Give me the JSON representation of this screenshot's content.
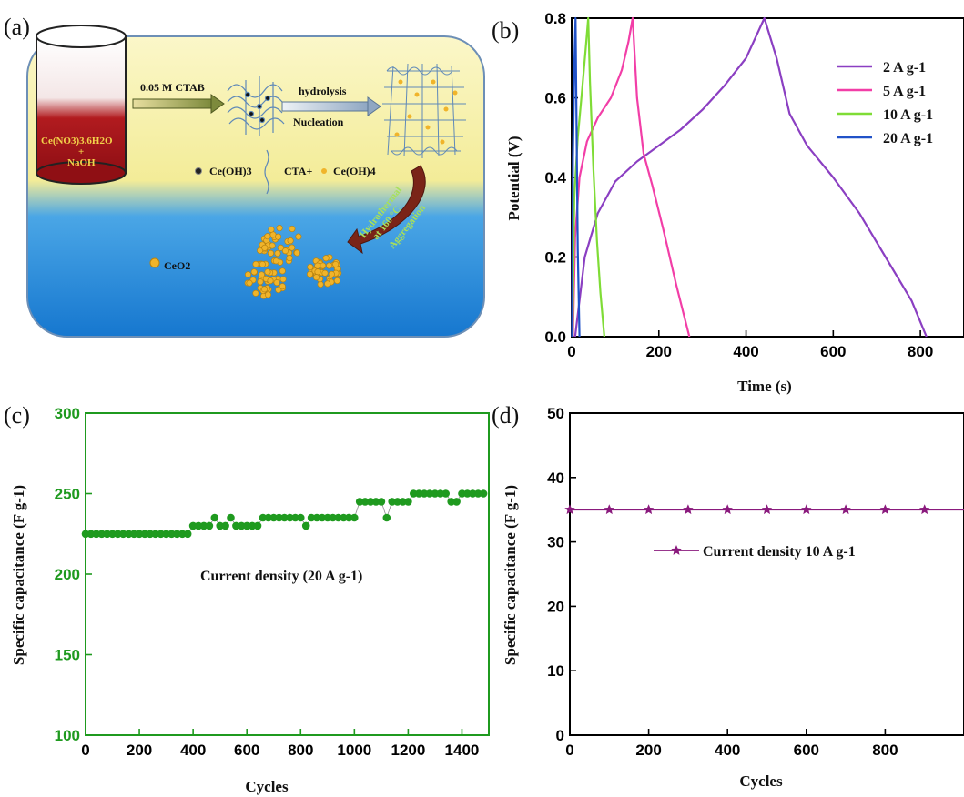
{
  "panels": {
    "a": "(a)",
    "b": "(b)",
    "c": "(c)",
    "d": "(d)"
  },
  "schematic": {
    "beaker_label_1": "Ce(NO3)3.6H2O",
    "beaker_label_2": "+",
    "beaker_label_3": "NaOH",
    "step1_label": "0.05 M CTAB",
    "step2_label_top": "hydrolysis",
    "step2_label_bottom": "Nucleation",
    "legend_ceoh3": "Ce(OH)3",
    "legend_cta": "CTA+",
    "legend_ceoh4": "Ce(OH)4",
    "curve_arrow_label_1": "Hydrothermal",
    "curve_arrow_label_2": "at 160 °C",
    "curve_arrow_label_3": "Aggregation",
    "product_label": "CeO2",
    "colors": {
      "bg_top": "#f6f1a6",
      "bg_bottom": "#1f86d8",
      "beaker_red": "#a8141b",
      "label_yellow": "#f2d24a",
      "particle": "#f0b42a",
      "arrow_brown": "#7a2418"
    }
  },
  "chart_data": [
    {
      "id": "b",
      "type": "line",
      "xlabel": "Time (s)",
      "ylabel": "Potential (V)",
      "xlim": [
        0,
        900
      ],
      "ylim": [
        0,
        0.8
      ],
      "xticks": [
        "0",
        "200",
        "400",
        "600",
        "800"
      ],
      "yticks": [
        "0.0",
        "0.2",
        "0.4",
        "0.6",
        "0.8"
      ],
      "legend_position": "top-right",
      "series": [
        {
          "name": "2 A g-1",
          "color": "#8b3fc2",
          "x": [
            8,
            30,
            60,
            100,
            150,
            200,
            250,
            300,
            350,
            400,
            442,
            470,
            500,
            540,
            600,
            660,
            720,
            780,
            814
          ],
          "y": [
            0,
            0.2,
            0.31,
            0.39,
            0.44,
            0.48,
            0.52,
            0.57,
            0.63,
            0.7,
            0.8,
            0.7,
            0.56,
            0.48,
            0.4,
            0.31,
            0.2,
            0.09,
            0
          ]
        },
        {
          "name": "5 A g-1",
          "color": "#f23ea7",
          "x": [
            3,
            8,
            18,
            35,
            60,
            90,
            115,
            130,
            140,
            150,
            165,
            185,
            210,
            240,
            270
          ],
          "y": [
            0,
            0.25,
            0.4,
            0.49,
            0.55,
            0.6,
            0.67,
            0.74,
            0.8,
            0.6,
            0.46,
            0.38,
            0.27,
            0.13,
            0
          ]
        },
        {
          "name": "10 A g-1",
          "color": "#7fdc36",
          "x": [
            2,
            6,
            14,
            24,
            32,
            38,
            42,
            50,
            58,
            66,
            75
          ],
          "y": [
            0,
            0.35,
            0.5,
            0.62,
            0.72,
            0.8,
            0.64,
            0.42,
            0.24,
            0.11,
            0
          ]
        },
        {
          "name": "20 A g-1",
          "color": "#2152c8",
          "x": [
            1,
            3,
            6,
            9,
            11,
            14,
            18
          ],
          "y": [
            0,
            0.45,
            0.68,
            0.8,
            0.55,
            0.22,
            0
          ]
        }
      ]
    },
    {
      "id": "c",
      "type": "scatter",
      "xlabel": "Cycles",
      "ylabel": "Specific capacitance (F g-1)",
      "xlim": [
        0,
        1500
      ],
      "ylim": [
        100,
        300
      ],
      "xticks": [
        "0",
        "200",
        "400",
        "600",
        "800",
        "1000",
        "1200",
        "1400"
      ],
      "yticks": [
        "100",
        "150",
        "200",
        "250",
        "300"
      ],
      "annotation": "Current density (20 A g-1)",
      "series": [
        {
          "name": "",
          "color": "#1f9a1f",
          "x": [
            0,
            20,
            40,
            60,
            80,
            100,
            120,
            140,
            160,
            180,
            200,
            220,
            240,
            260,
            280,
            300,
            320,
            340,
            360,
            380,
            400,
            420,
            440,
            460,
            480,
            500,
            520,
            540,
            560,
            580,
            600,
            620,
            640,
            660,
            680,
            700,
            720,
            740,
            760,
            780,
            800,
            820,
            840,
            860,
            880,
            900,
            920,
            940,
            960,
            980,
            1000,
            1020,
            1040,
            1060,
            1080,
            1100,
            1120,
            1140,
            1160,
            1180,
            1200,
            1220,
            1240,
            1260,
            1280,
            1300,
            1320,
            1340,
            1360,
            1380,
            1400,
            1420,
            1440,
            1460,
            1480
          ],
          "y": [
            225,
            225,
            225,
            225,
            225,
            225,
            225,
            225,
            225,
            225,
            225,
            225,
            225,
            225,
            225,
            225,
            225,
            225,
            225,
            225,
            230,
            230,
            230,
            230,
            235,
            230,
            230,
            235,
            230,
            230,
            230,
            230,
            230,
            235,
            235,
            235,
            235,
            235,
            235,
            235,
            235,
            230,
            235,
            235,
            235,
            235,
            235,
            235,
            235,
            235,
            235,
            245,
            245,
            245,
            245,
            245,
            235,
            245,
            245,
            245,
            245,
            250,
            250,
            250,
            250,
            250,
            250,
            250,
            245,
            245,
            250,
            250,
            250,
            250,
            250
          ]
        }
      ]
    },
    {
      "id": "d",
      "type": "line",
      "xlabel": "Cycles",
      "ylabel": "Specific capacitance (F g-1)",
      "xlim": [
        0,
        1000
      ],
      "ylim": [
        0,
        50
      ],
      "xticks": [
        "0",
        "200",
        "400",
        "600",
        "800"
      ],
      "yticks": [
        "0",
        "10",
        "20",
        "30",
        "40",
        "50"
      ],
      "legend_position": "center",
      "series": [
        {
          "name": "Current density 10 A g-1",
          "color": "#8a1a7d",
          "x": [
            0,
            100,
            200,
            300,
            400,
            500,
            600,
            700,
            800,
            900,
            1000
          ],
          "y": [
            35,
            35,
            35,
            35,
            35,
            35,
            35,
            35,
            35,
            35,
            35
          ]
        }
      ]
    }
  ]
}
